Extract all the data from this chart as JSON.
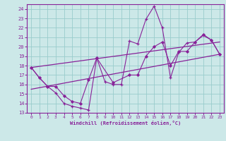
{
  "xlabel": "Windchill (Refroidissement éolien,°C)",
  "xlim": [
    -0.5,
    23.5
  ],
  "ylim": [
    13,
    24.5
  ],
  "xticks": [
    0,
    1,
    2,
    3,
    4,
    5,
    6,
    7,
    8,
    9,
    10,
    11,
    12,
    13,
    14,
    15,
    16,
    17,
    18,
    19,
    20,
    21,
    22,
    23
  ],
  "yticks": [
    13,
    14,
    15,
    16,
    17,
    18,
    19,
    20,
    21,
    22,
    23,
    24
  ],
  "background_color": "#cce8e8",
  "grid_color": "#99cccc",
  "line_color": "#882299",
  "line1_x": [
    0,
    1,
    2,
    3,
    4,
    5,
    6,
    7,
    8,
    9,
    10,
    11,
    12,
    13,
    14,
    15,
    16,
    17,
    18,
    19,
    20,
    21,
    22,
    23
  ],
  "line1_y": [
    17.8,
    16.7,
    15.8,
    15.1,
    14.0,
    13.7,
    13.5,
    13.3,
    18.8,
    16.3,
    16.0,
    16.0,
    20.6,
    20.3,
    22.9,
    24.3,
    22.0,
    16.7,
    19.4,
    20.4,
    20.5,
    21.2,
    20.7,
    19.2
  ],
  "line2_x": [
    0,
    1,
    2,
    3,
    4,
    5,
    6,
    7,
    8,
    10,
    12,
    13,
    14,
    15,
    16,
    17,
    18,
    19,
    20,
    21,
    22,
    23
  ],
  "line2_y": [
    17.8,
    16.7,
    15.8,
    15.8,
    14.8,
    14.2,
    14.0,
    16.5,
    18.8,
    16.2,
    17.0,
    17.0,
    19.0,
    20.0,
    20.5,
    18.0,
    19.5,
    19.5,
    20.5,
    21.3,
    20.7,
    19.2
  ],
  "trend1_x": [
    0,
    23
  ],
  "trend1_y": [
    17.8,
    20.5
  ],
  "trend2_x": [
    0,
    23
  ],
  "trend2_y": [
    15.5,
    19.2
  ]
}
